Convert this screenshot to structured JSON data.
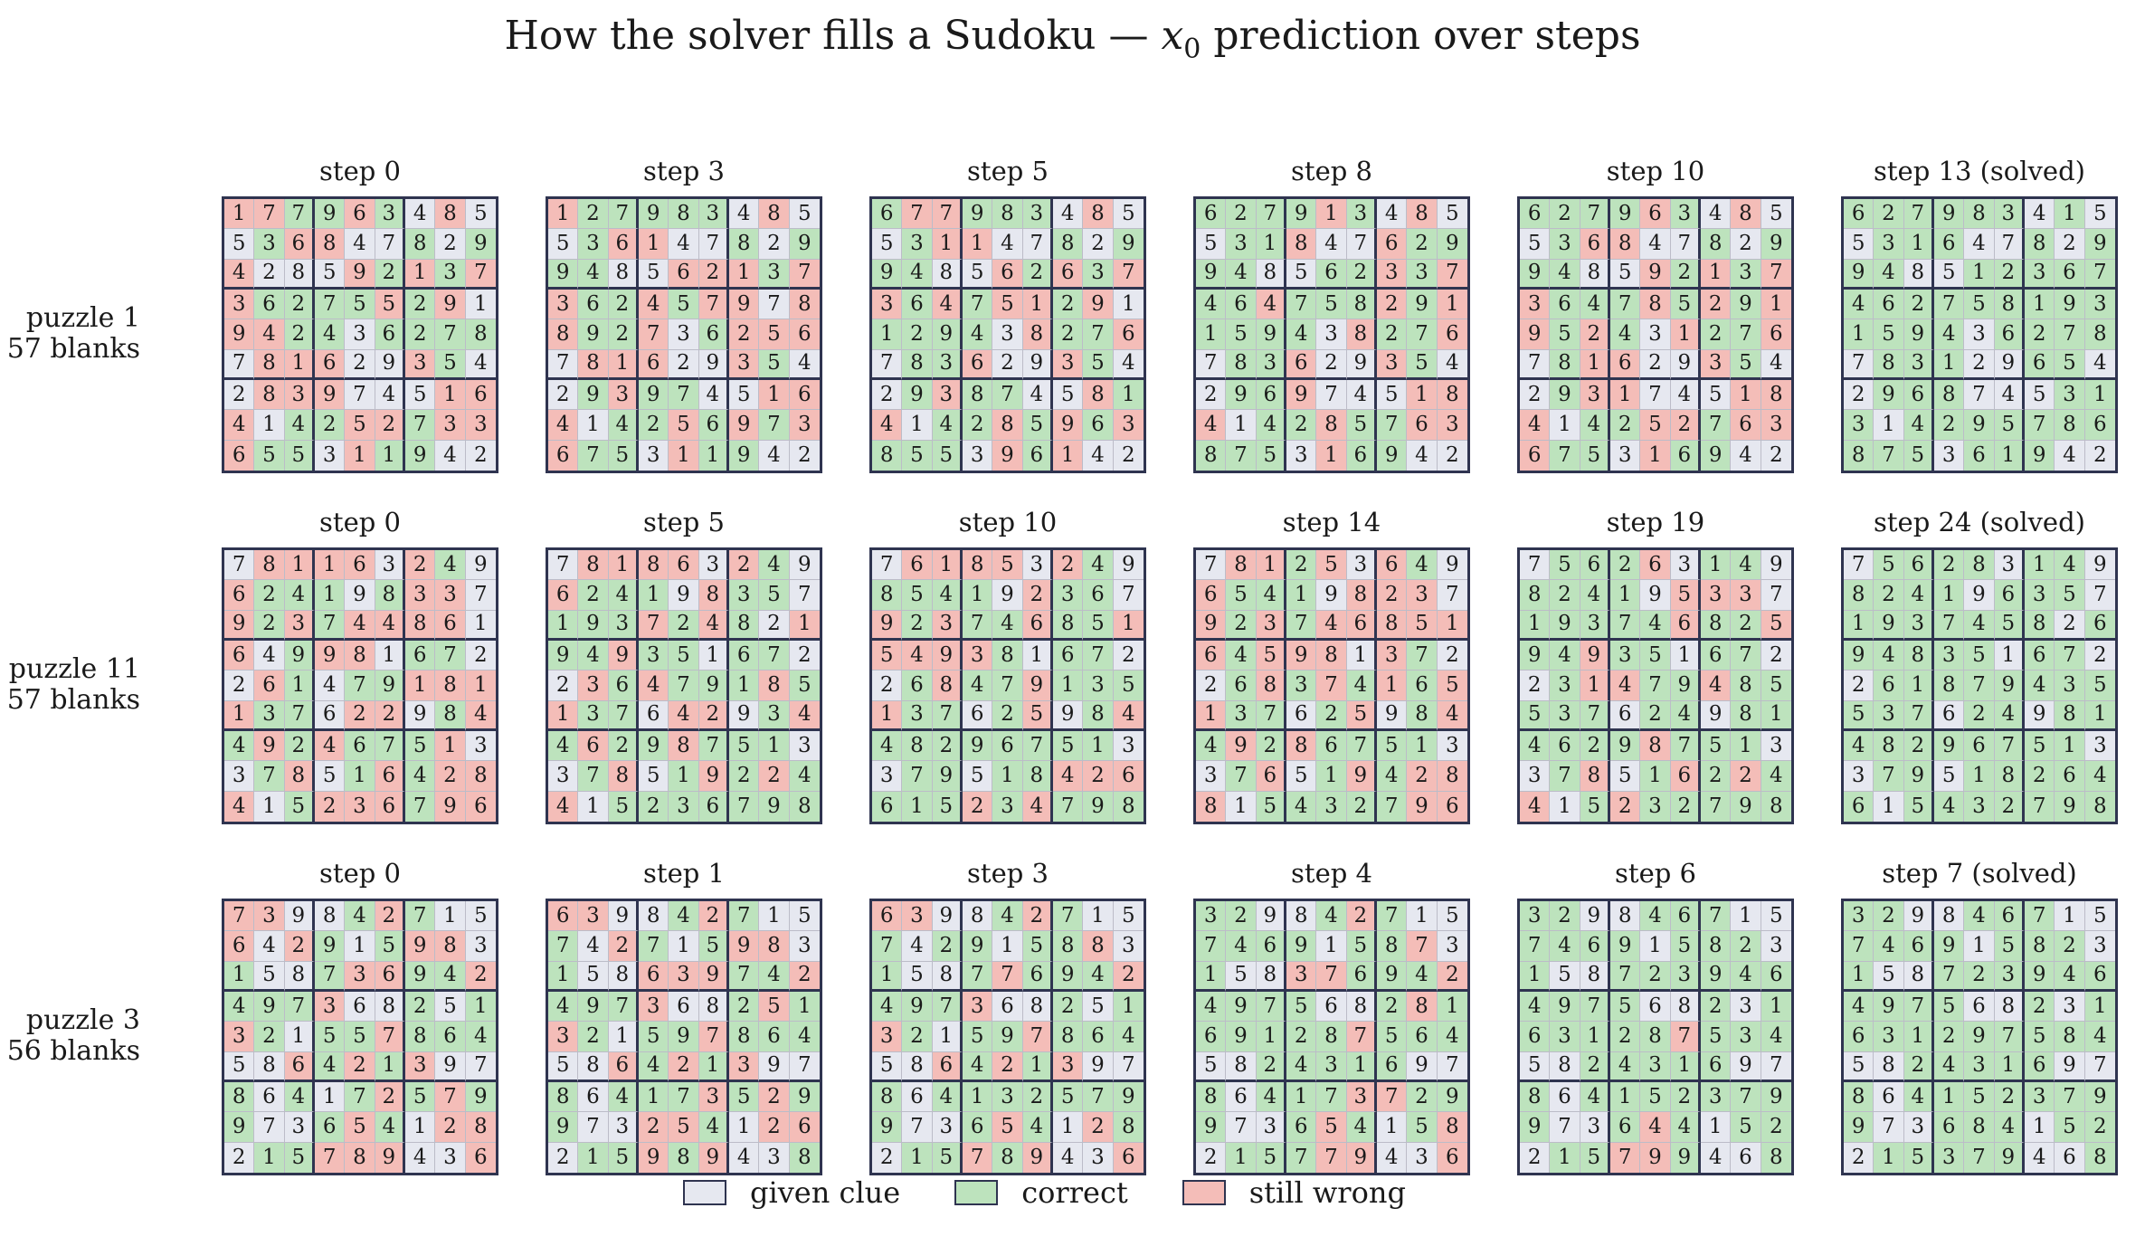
{
  "figure": {
    "title_pre": "How the solver fills a Sudoku — ",
    "title_var": "x",
    "title_sub": "0",
    "title_post": " prediction over steps"
  },
  "colors": {
    "given_clue": "#e6e8f0",
    "correct": "#bde3bd",
    "still_wrong": "#f4bdb8",
    "grid_line": "#2f3450"
  },
  "legend": [
    {
      "key": "G",
      "label": "given clue"
    },
    {
      "key": "C",
      "label": "correct"
    },
    {
      "key": "W",
      "label": "still wrong"
    }
  ],
  "chart_data": {
    "type": "heatmap",
    "cell_codes": {
      "G": "given clue",
      "C": "correct",
      "W": "still wrong"
    },
    "puzzles": [
      {
        "label_line1": "puzzle 1",
        "label_line2": "57 blanks",
        "panels": [
          {
            "title": "step 0",
            "digits": [
              "177963485",
              "536847829",
              "428592137",
              "362755291",
              "942436278",
              "781629354",
              "283974516",
              "414252733",
              "655311942"
            ],
            "states": [
              "WWCCWCGWG",
              "GCWWGGCGC",
              "WGGGWCWCW",
              "WCCCCWCWG",
              "WWCCGCCCC",
              "GWWWGGWCG",
              "GWWWGGGWW",
              "WGCCWWCWW",
              "WCCGWCCGG"
            ]
          },
          {
            "title": "step 3",
            "digits": [
              "127983485",
              "536147829",
              "948562137",
              "362457978",
              "892736256",
              "781629354",
              "293974516",
              "414256973",
              "675311942"
            ],
            "states": [
              "WCCCCCGWG",
              "GCWWGGCGC",
              "CCGGWWWCW",
              "WCCWCWWGW",
              "WCCWGCWWW",
              "GWWWGGWCG",
              "GCWCCGGWW",
              "WGCCWCWCW",
              "WCCGWCCGG"
            ]
          },
          {
            "title": "step 5",
            "digits": [
              "677983485",
              "531147829",
              "948562637",
              "364751291",
              "129438276",
              "783629354",
              "293874581",
              "414285963",
              "855396142"
            ],
            "states": [
              "CWWCCCGWG",
              "GCWWGGCGC",
              "CCGGWCWCW",
              "WCWCWWCWG",
              "CCCCGWCCW",
              "GCCWGGWCG",
              "GCWCCGGWC",
              "WGCCWCWCW",
              "CCCGWCWGG"
            ]
          },
          {
            "title": "step 8",
            "digits": [
              "627913485",
              "531847629",
              "948562337",
              "464758291",
              "159438276",
              "783629354",
              "296974518",
              "414285763",
              "875316942"
            ],
            "states": [
              "CCCCWCGWG",
              "GCCWGGWCC",
              "CCGGCCWCW",
              "CCWCCCWCW",
              "CCCCGWCCW",
              "GCCWGGWCG",
              "GCCWGGGWW",
              "WGCCWCCWW",
              "CCCGWCCGG"
            ]
          },
          {
            "title": "step 10",
            "digits": [
              "627963485",
              "536847829",
              "948592137",
              "364785291",
              "952431276",
              "781629354",
              "293174518",
              "414252763",
              "675316942"
            ],
            "states": [
              "CCCCWCGWG",
              "GCWWGGCGC",
              "CCGGWCWCW",
              "WCCCWCWCW",
              "WCWCGWCCW",
              "GCWWGGWCG",
              "GCWWGGGWW",
              "WGCCWWCWW",
              "WCCGWCCGG"
            ]
          },
          {
            "title": "step 13 (solved)",
            "digits": [
              "627983415",
              "531647829",
              "948512367",
              "462758193",
              "159436278",
              "783129654",
              "296874531",
              "314295786",
              "875361942"
            ],
            "states": [
              "CCCCCCGCG",
              "GCCCGGCGC",
              "CCGGCCCCC",
              "CCCCCCCCC",
              "CCCCGCCCC",
              "GCCCGGCCG",
              "GCCCGGGCC",
              "CGCCCCCCC",
              "CCCGCCCGG"
            ]
          }
        ]
      },
      {
        "label_line1": "puzzle 11",
        "label_line2": "57 blanks",
        "panels": [
          {
            "title": "step 0",
            "digits": [
              "781163249",
              "624198337",
              "923744861",
              "649981672",
              "261479181",
              "137622984",
              "492467513",
              "378516428",
              "415236796"
            ],
            "states": [
              "GWWWWGWCG",
              "WCCCGCWWG",
              "WCWCWWWWG",
              "WGCWWGCCG",
              "GWCGCCWWW",
              "WCCGWWGCW",
              "CWCWCCCWG",
              "GCWGCWCWW",
              "WGCWWWCWW"
            ]
          },
          {
            "title": "step 5",
            "digits": [
              "781863249",
              "624198357",
              "193724821",
              "949351672",
              "236479185",
              "137642934",
              "462987513",
              "378519224",
              "415236798"
            ],
            "states": [
              "GWWWWGWCG",
              "WCCCGWCCG",
              "CCCWCWCGW",
              "CCWCCGCCG",
              "GWCWCCCWC",
              "WCCGWWGCW",
              "CWCCWCCCG",
              "GCWGCWCWC",
              "WGCCCCCCC"
            ]
          },
          {
            "title": "step 10",
            "digits": [
              "761853249",
              "854192367",
              "923746851",
              "549381672",
              "268479135",
              "137625984",
              "482967513",
              "379518426",
              "615234798"
            ],
            "states": [
              "GWWWWGWCG",
              "CCCCGWCCG",
              "WCWCCWCCW",
              "WWWWCGCCG",
              "GCWCCWCCC",
              "WCCGCWGCW",
              "CCCCCCCCG",
              "GCCGCCWWW",
              "CCCWCWCCC"
            ]
          },
          {
            "title": "step 14",
            "digits": [
              "781253649",
              "654198237",
              "923746851",
              "645981372",
              "268374165",
              "137625984",
              "492867513",
              "376519428",
              "815432796"
            ],
            "states": [
              "GWWCWGWCG",
              "WCCCGWWWG",
              "WCWCWWWWW",
              "WCWWWGWCG",
              "GCWCWCWCW",
              "WCCGCWGCW",
              "CWCWCCCCG",
              "GCWGCWCWW",
              "WGCCCCCWW"
            ]
          },
          {
            "title": "step 19",
            "digits": [
              "756263149",
              "824195337",
              "193746825",
              "949351672",
              "231479485",
              "537624981",
              "462987513",
              "378516224",
              "415232798"
            ],
            "states": [
              "GCCCWGCCG",
              "CCCCGWWWG",
              "CCCCCWCCW",
              "CCWCCGCCG",
              "GCWWCCWCC",
              "CCCGCCGCC",
              "CCCCWCCCG",
              "GCWGCWCWC",
              "WGCWCCCCC"
            ]
          },
          {
            "title": "step 24 (solved)",
            "digits": [
              "756283149",
              "824196357",
              "193745826",
              "948351672",
              "261879435",
              "537624981",
              "482967513",
              "379518264",
              "615432798"
            ],
            "states": [
              "GCCCCGCCG",
              "CCCCGCCCG",
              "CCCCCCCGC",
              "CCCCCGCCG",
              "GCCCCCCCC",
              "CCCGCCGCC",
              "CCCCCCCCG",
              "GCCGCCCCC",
              "CGCCCCCCC"
            ]
          }
        ]
      },
      {
        "label_line1": "puzzle 3",
        "label_line2": "56 blanks",
        "panels": [
          {
            "title": "step 0",
            "digits": [
              "739842715",
              "642915983",
              "158736942",
              "497368251",
              "321557864",
              "586421397",
              "864172579",
              "973654128",
              "215789436"
            ],
            "states": [
              "WWGGCWCGG",
              "WGWCGCWWG",
              "CGGCWWCCW",
              "CCCWGGCGC",
              "WCGCCWCCC",
              "GGWCWCWGG",
              "CGCGCWCWC",
              "CGGCWCGWW",
              "GCCWWWGGW"
            ]
          },
          {
            "title": "step 1",
            "digits": [
              "639842715",
              "742715983",
              "158639742",
              "497368251",
              "321597864",
              "586421397",
              "864173529",
              "973254126",
              "215989438"
            ],
            "states": [
              "WWGGCWCGG",
              "CGWCGCWWG",
              "CGGWWWCCW",
              "CCCWGGCWC",
              "WCGCCWCCC",
              "GGWCWCWGG",
              "CGCCCWCWC",
              "CGGWWCGWW",
              "GCCWCWGGC"
            ]
          },
          {
            "title": "step 3",
            "digits": [
              "639842715",
              "742915883",
              "158776942",
              "497368251",
              "321597864",
              "586421397",
              "864132579",
              "973654128",
              "215789436"
            ],
            "states": [
              "WWGGCWCGG",
              "CGCCGCCWG",
              "CGGCWCCCW",
              "CCCWGGCGC",
              "WCGCCWCCC",
              "GGWCWCWGG",
              "CGCCCCCCC",
              "CGGCWCGWC",
              "GCCWCWGGW"
            ]
          },
          {
            "title": "step 4",
            "digits": [
              "329842715",
              "746915873",
              "158376942",
              "497568281",
              "691287564",
              "582431697",
              "864173729",
              "973654158",
              "215779436"
            ],
            "states": [
              "CCGGCWCGG",
              "CCCCGCCWG",
              "CGGWWCCCW",
              "CCCCGGCWC",
              "CCCCCWCCC",
              "GGCCCCCGG",
              "CGCCCWWCC",
              "CGGCWCGCW",
              "GCCCWWGGW"
            ]
          },
          {
            "title": "step 6",
            "digits": [
              "329846715",
              "746915823",
              "158723946",
              "497568231",
              "631287534",
              "582431697",
              "864152379",
              "973644152",
              "215799468"
            ],
            "states": [
              "CCGGCCCGG",
              "CCCCGCCCG",
              "CGGCCCCCC",
              "CCCCGGCGC",
              "CCCCCWCCC",
              "GGCCCCCGG",
              "CGCCCCCCC",
              "CGGCWCGCC",
              "GCCWWCGGC"
            ]
          },
          {
            "title": "step 7 (solved)",
            "digits": [
              "329846715",
              "746915823",
              "158723946",
              "497568231",
              "631297584",
              "582431697",
              "864152379",
              "973684152",
              "215379468"
            ],
            "states": [
              "CCGGCCCGG",
              "CCCCGCCCG",
              "CGGCCCCCC",
              "CCCCGGCGC",
              "CCCCCCCCC",
              "GGCCCCCGG",
              "CGCCCCCCC",
              "CGGCCCGCC",
              "GCCCCCGGC"
            ]
          }
        ]
      }
    ]
  }
}
